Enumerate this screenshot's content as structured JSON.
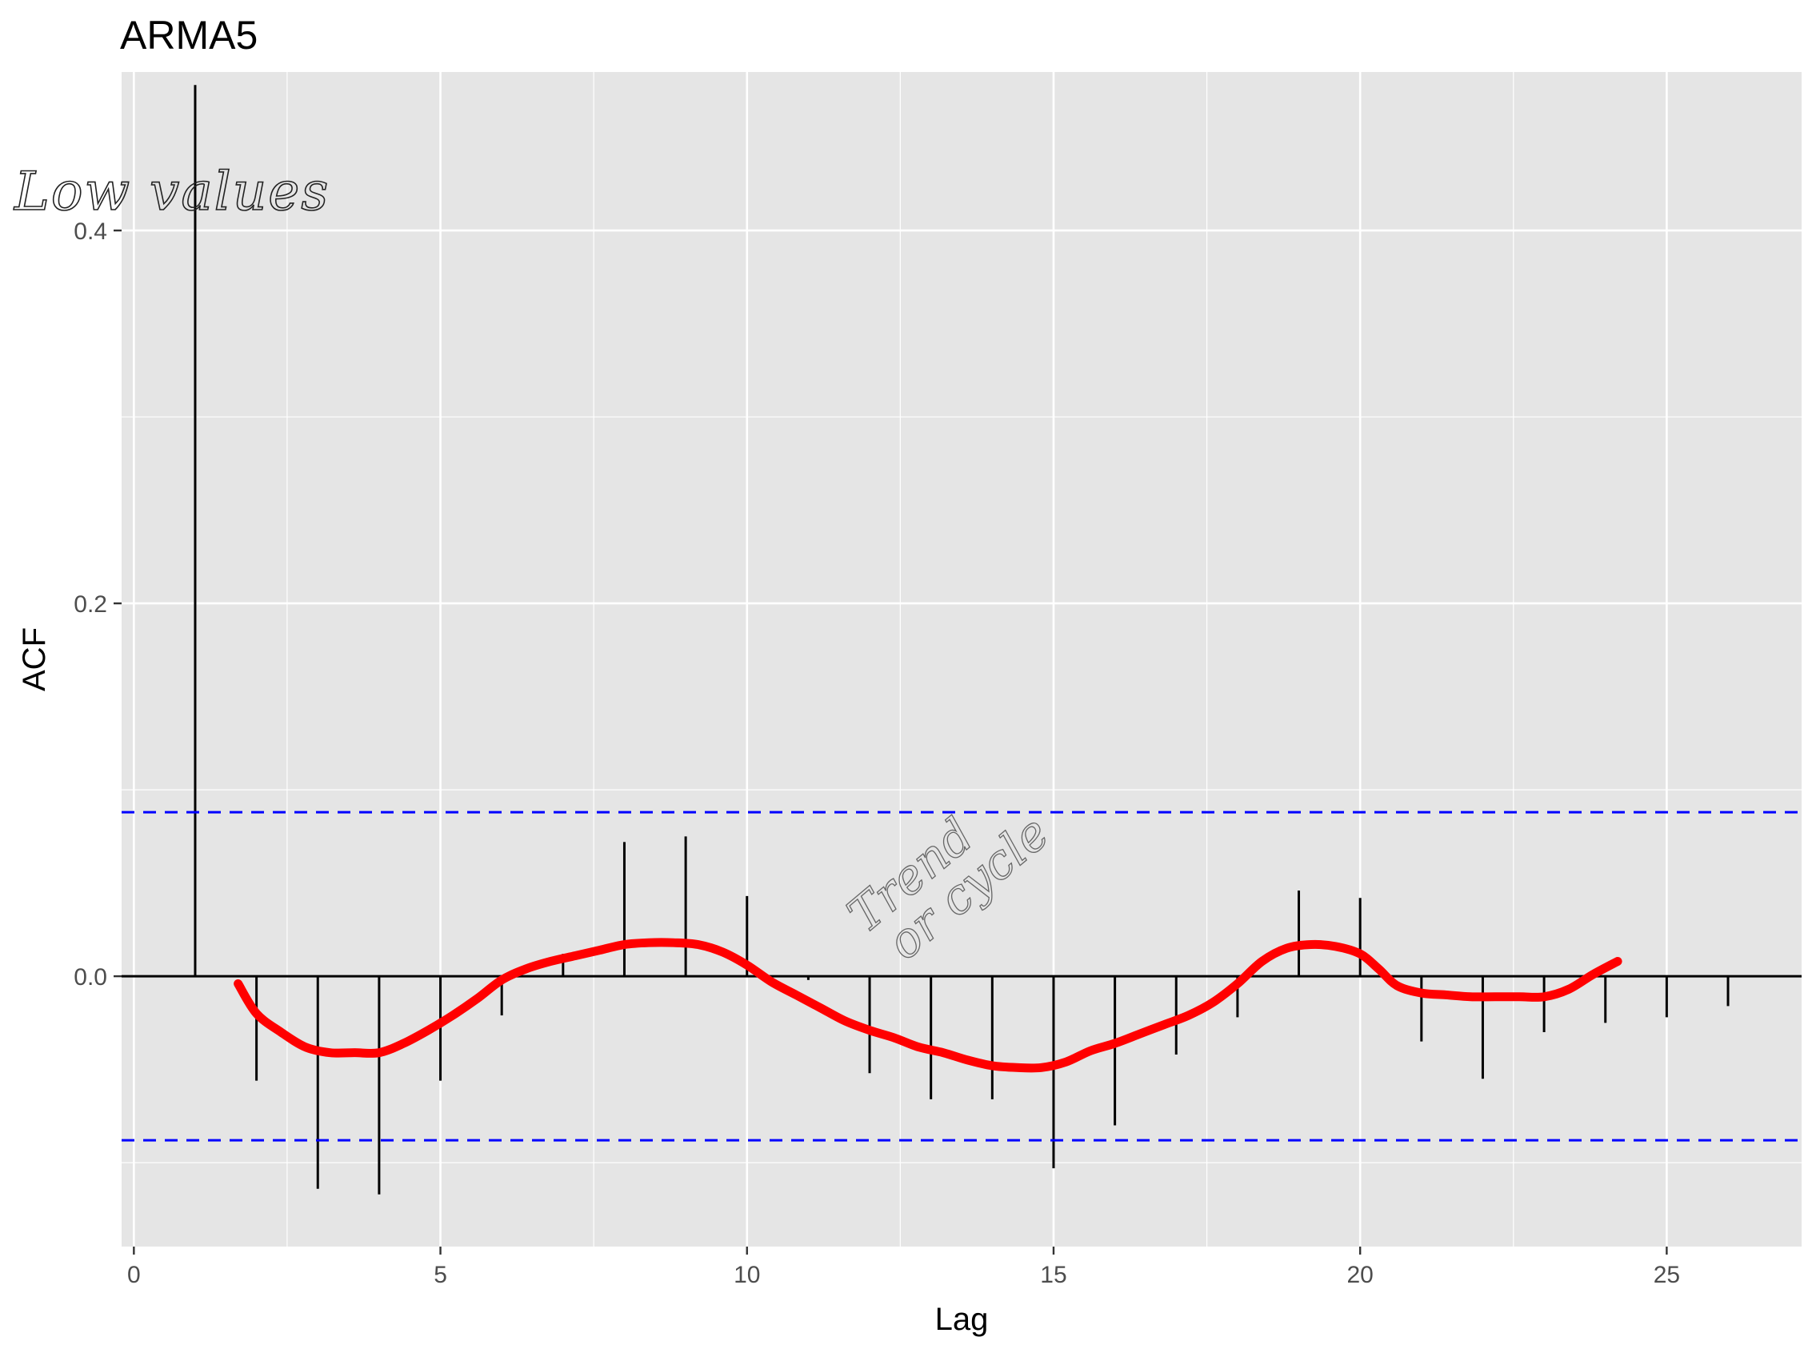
{
  "chart_data": {
    "type": "bar",
    "title": "ARMA5",
    "xlabel": "Lag",
    "ylabel": "ACF",
    "xlim": [
      -0.2,
      27.2
    ],
    "ylim": [
      -0.145,
      0.485
    ],
    "x_ticks": [
      0,
      5,
      10,
      15,
      20,
      25
    ],
    "y_ticks": [
      0.0,
      0.2,
      0.4
    ],
    "y_tick_labels": [
      "0.0",
      "0.2",
      "0.4"
    ],
    "x_tick_labels": [
      "0",
      "5",
      "10",
      "15",
      "20",
      "25"
    ],
    "lags": [
      1,
      2,
      3,
      4,
      5,
      6,
      7,
      8,
      9,
      10,
      11,
      12,
      13,
      14,
      15,
      16,
      17,
      18,
      19,
      20,
      21,
      22,
      23,
      24,
      25,
      26
    ],
    "values": [
      0.478,
      -0.056,
      -0.114,
      -0.117,
      -0.056,
      -0.021,
      0.012,
      0.072,
      0.075,
      0.043,
      -0.002,
      -0.052,
      -0.066,
      -0.066,
      -0.103,
      -0.08,
      -0.042,
      -0.022,
      0.046,
      0.042,
      -0.035,
      -0.055,
      -0.03,
      -0.025,
      -0.022,
      -0.016
    ],
    "confidence_bounds": [
      0.088,
      -0.088
    ],
    "grid": true,
    "annotations": {
      "handwritten_notes": [
        "Low values",
        "Trend or cycle"
      ],
      "trend_curve": {
        "description": "hand-drawn red curve",
        "x": [
          1.7,
          2.0,
          2.4,
          2.8,
          3.2,
          3.6,
          4.0,
          4.4,
          4.8,
          5.2,
          5.6,
          6.0,
          6.4,
          6.8,
          7.2,
          7.6,
          8.0,
          8.4,
          8.8,
          9.2,
          9.6,
          10.0,
          10.4,
          10.8,
          11.2,
          11.6,
          12.0,
          12.4,
          12.8,
          13.2,
          13.6,
          14.0,
          14.4,
          14.8,
          15.2,
          15.6,
          16.0,
          16.4,
          16.8,
          17.2,
          17.6,
          18.0,
          18.4,
          18.8,
          19.2,
          19.6,
          20.0,
          20.3,
          20.6,
          21.0,
          21.4,
          21.8,
          22.2,
          22.6,
          23.0,
          23.4,
          23.8,
          24.2
        ],
        "y": [
          -0.004,
          -0.02,
          -0.03,
          -0.038,
          -0.041,
          -0.041,
          -0.041,
          -0.036,
          -0.029,
          -0.021,
          -0.012,
          -0.002,
          0.004,
          0.008,
          0.011,
          0.014,
          0.017,
          0.018,
          0.018,
          0.017,
          0.013,
          0.006,
          -0.003,
          -0.01,
          -0.017,
          -0.024,
          -0.029,
          -0.033,
          -0.038,
          -0.041,
          -0.045,
          -0.048,
          -0.049,
          -0.049,
          -0.046,
          -0.04,
          -0.036,
          -0.031,
          -0.026,
          -0.021,
          -0.014,
          -0.004,
          0.008,
          0.015,
          0.017,
          0.016,
          0.012,
          0.004,
          -0.005,
          -0.009,
          -0.01,
          -0.011,
          -0.011,
          -0.011,
          -0.011,
          -0.007,
          0.001,
          0.008
        ]
      }
    },
    "colors": {
      "panel_background": "#e5e5e5",
      "grid": "#ffffff",
      "bars": "#000000",
      "bounds": "#0000ff",
      "trend": "#ff0000",
      "note": "#666666"
    }
  }
}
